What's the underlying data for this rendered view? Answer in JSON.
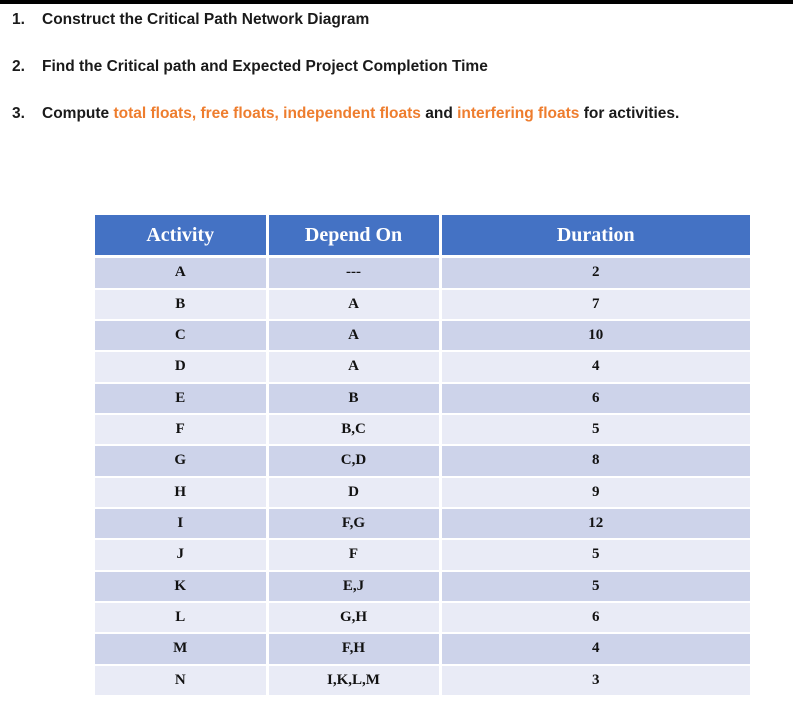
{
  "instructions": [
    {
      "number": "1.",
      "segments": [
        {
          "text": "Construct the Critical Path Network Diagram",
          "highlight": false
        }
      ]
    },
    {
      "number": "2.",
      "segments": [
        {
          "text": "Find the Critical path and Expected Project Completion Time",
          "highlight": false
        }
      ]
    },
    {
      "number": "3.",
      "segments": [
        {
          "text": "Compute ",
          "highlight": false
        },
        {
          "text": "total floats, free floats, independent floats",
          "highlight": true
        },
        {
          "text": " and ",
          "highlight": false
        },
        {
          "text": "interfering floats",
          "highlight": true
        },
        {
          "text": " for activities.",
          "highlight": false
        }
      ]
    }
  ],
  "table": {
    "columns": [
      "Activity",
      "Depend On",
      "Duration"
    ],
    "rows": [
      [
        "A",
        "---",
        "2"
      ],
      [
        "B",
        "A",
        "7"
      ],
      [
        "C",
        "A",
        "10"
      ],
      [
        "D",
        "A",
        "4"
      ],
      [
        "E",
        "B",
        "6"
      ],
      [
        "F",
        "B,C",
        "5"
      ],
      [
        "G",
        "C,D",
        "8"
      ],
      [
        "H",
        "D",
        "9"
      ],
      [
        "I",
        "F,G",
        "12"
      ],
      [
        "J",
        "F",
        "5"
      ],
      [
        "K",
        "E,J",
        "5"
      ],
      [
        "L",
        "G,H",
        "6"
      ],
      [
        "M",
        "F,H",
        "4"
      ],
      [
        "N",
        "I,K,L,M",
        "3"
      ]
    ],
    "colors": {
      "header_bg": "#4472C4",
      "header_text": "#FFFFFF",
      "row_odd_bg": "#CDD3EA",
      "row_even_bg": "#E9EBF6",
      "highlight_text": "#EE7D2E",
      "top_border": "#000000"
    }
  }
}
